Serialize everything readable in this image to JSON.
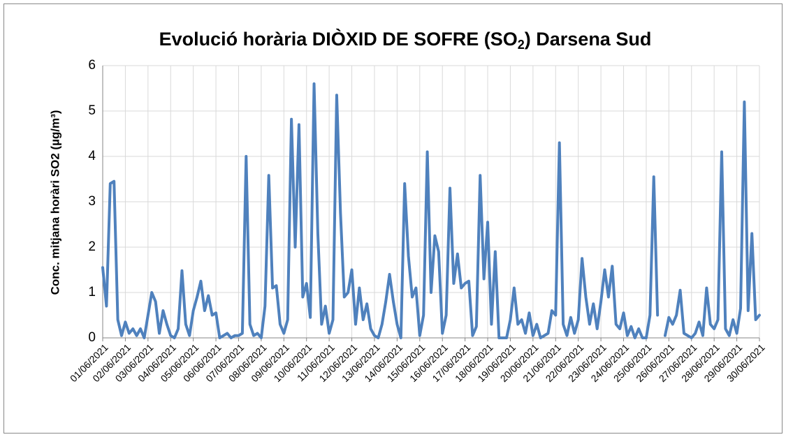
{
  "chart_data": {
    "type": "line",
    "title": [
      "Evolució horària DIÒXID DE SOFRE (SO",
      "2",
      ") Darsena Sud"
    ],
    "y_label": "Conc. mitjana horàri SO2 (µg/m³)",
    "categories": [
      "01/06/2021",
      null,
      null,
      null,
      null,
      null,
      "02/06/2021",
      null,
      null,
      null,
      null,
      null,
      "03/06/2021",
      null,
      null,
      null,
      null,
      null,
      "04/06/2021",
      null,
      null,
      null,
      null,
      null,
      "05/06/2021",
      null,
      null,
      null,
      null,
      null,
      "06/06/2021",
      null,
      null,
      null,
      null,
      null,
      "07/06/2021",
      null,
      null,
      null,
      null,
      null,
      "08/06/2021",
      null,
      null,
      null,
      null,
      null,
      "09/06/2021",
      null,
      null,
      null,
      null,
      null,
      "10/06/2021",
      null,
      null,
      null,
      null,
      null,
      "11/06/2021",
      null,
      null,
      null,
      null,
      null,
      "12/06/2021",
      null,
      null,
      null,
      null,
      null,
      "13/06/2021",
      null,
      null,
      null,
      null,
      null,
      "14/06/2021",
      null,
      null,
      null,
      null,
      null,
      "15/06/2021",
      null,
      null,
      null,
      null,
      null,
      "16/06/2021",
      null,
      null,
      null,
      null,
      null,
      "17/06/2021",
      null,
      null,
      null,
      null,
      null,
      "18/06/2021",
      null,
      null,
      null,
      null,
      null,
      "19/06/2021",
      null,
      null,
      null,
      null,
      null,
      "20/06/2021",
      null,
      null,
      null,
      null,
      null,
      "21/06/2021",
      null,
      null,
      null,
      null,
      null,
      "22/06/2021",
      null,
      null,
      null,
      null,
      null,
      "23/06/2021",
      null,
      null,
      null,
      null,
      null,
      "24/06/2021",
      null,
      null,
      null,
      null,
      null,
      "25/06/2021",
      null,
      null,
      null,
      null,
      null,
      "26/06/2021",
      null,
      null,
      null,
      null,
      null,
      "27/06/2021",
      null,
      null,
      null,
      null,
      null,
      "28/06/2021",
      null,
      null,
      null,
      null,
      null,
      "29/06/2021",
      null,
      null,
      null,
      null,
      null,
      "30/06/2021"
    ],
    "series": [
      {
        "name": "SO2",
        "color": "#4f81bd",
        "values": [
          1.55,
          0.7,
          3.4,
          3.45,
          0.4,
          0.05,
          0.35,
          0.1,
          0.2,
          0.05,
          0.2,
          0,
          0.5,
          1.0,
          0.8,
          0.1,
          0.6,
          0.3,
          0.05,
          0,
          0.2,
          1.48,
          0.3,
          0.05,
          0.6,
          0.9,
          1.25,
          0.6,
          0.93,
          0.5,
          0.55,
          0,
          0.05,
          0.1,
          0,
          0.05,
          0.05,
          0.1,
          4.0,
          0.3,
          0.05,
          0.1,
          0,
          0.7,
          3.58,
          1.1,
          1.15,
          0.3,
          0.1,
          0.4,
          4.82,
          2.0,
          4.7,
          0.9,
          1.2,
          0.45,
          5.6,
          2.3,
          0.3,
          0.7,
          0.1,
          0.4,
          5.35,
          2.75,
          0.9,
          1.0,
          1.5,
          0.3,
          1.1,
          0.4,
          0.75,
          0.2,
          0.05,
          0,
          0.3,
          0.8,
          1.4,
          0.8,
          0.3,
          0,
          3.4,
          1.8,
          0.9,
          1.1,
          0.05,
          0.5,
          4.1,
          1.0,
          2.25,
          1.9,
          0.1,
          0.5,
          3.3,
          1.2,
          1.85,
          1.1,
          1.2,
          1.25,
          0.05,
          0.25,
          3.58,
          1.3,
          2.55,
          0.3,
          1.9,
          0,
          0,
          0,
          0.4,
          1.1,
          0.3,
          0.4,
          0.1,
          0.55,
          0.05,
          0.3,
          0,
          0.05,
          0.1,
          0.6,
          0.5,
          4.3,
          0.3,
          0.05,
          0.45,
          0.1,
          0.4,
          1.75,
          0.9,
          0.3,
          0.75,
          0.2,
          0.8,
          1.5,
          0.9,
          1.58,
          0.3,
          0.2,
          0.55,
          0.05,
          0.25,
          0,
          0.2,
          0,
          0,
          0.5,
          3.55,
          0.5,
          null,
          0.05,
          0.45,
          0.3,
          0.5,
          1.05,
          0.1,
          0.05,
          0,
          0.1,
          0.35,
          0.05,
          1.1,
          0.3,
          0.2,
          0.4,
          4.1,
          0.2,
          0.05,
          0.4,
          0.1,
          0.65,
          5.2,
          0.6,
          2.3,
          0.4,
          0.5
        ]
      }
    ],
    "ylim": [
      0,
      6
    ],
    "yticks": [
      0,
      1,
      2,
      3,
      4,
      5,
      6
    ],
    "grid": true
  }
}
